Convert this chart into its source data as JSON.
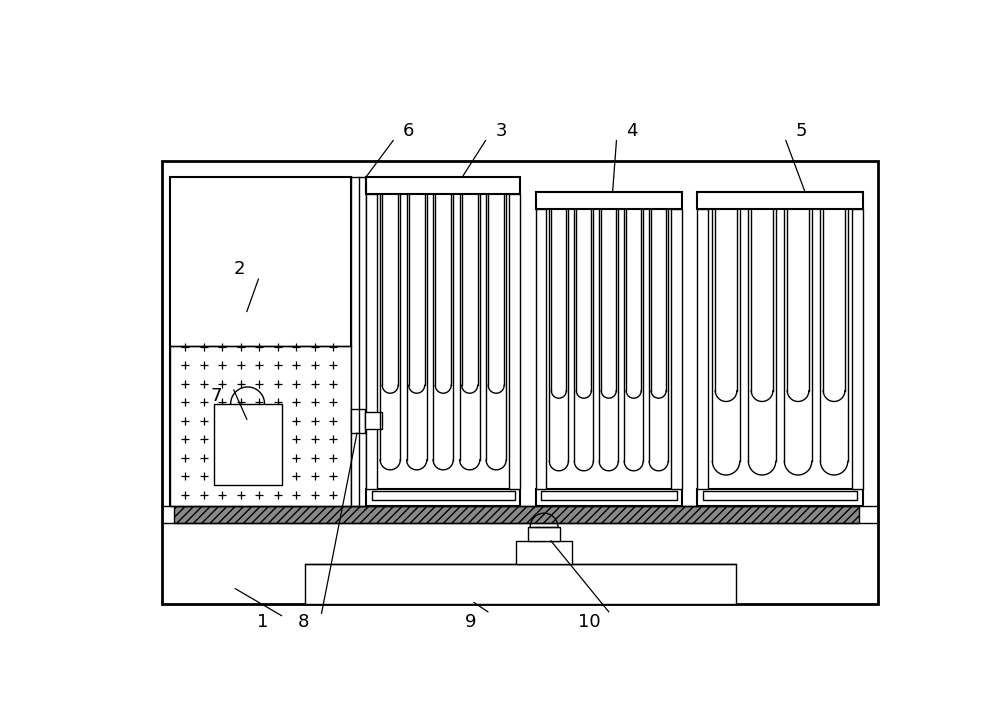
{
  "bg_color": "#ffffff",
  "fig_width": 10.0,
  "fig_height": 7.22,
  "lw_thin": 1.0,
  "lw_med": 1.5,
  "lw_thick": 2.0
}
